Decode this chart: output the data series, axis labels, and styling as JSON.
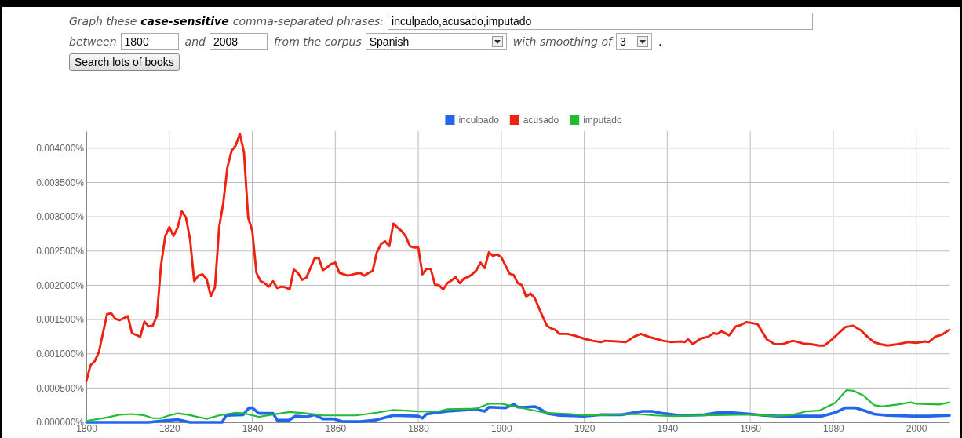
{
  "chart_data": {
    "type": "line",
    "annotations": [
      "Graph these",
      "case-sensitive",
      "comma-separated phrases:",
      "inculpado,acusado,imputado",
      "between",
      "1800",
      "and",
      "2008",
      "from the corpus",
      "Spanish",
      "with smoothing of",
      "3",
      ".",
      "Search lots of books"
    ],
    "xlim": [
      1800,
      2008
    ],
    "xticks": [
      1800,
      1820,
      1840,
      1860,
      1880,
      1900,
      1920,
      1940,
      1960,
      1980,
      2000
    ],
    "ylim": [
      0,
      0.00425
    ],
    "yticks": [
      {
        "value": 0,
        "label": "0.000000%"
      },
      {
        "value": 0.0005,
        "label": "0.000500%"
      },
      {
        "value": 0.001,
        "label": "0.001000%"
      },
      {
        "value": 0.0015,
        "label": "0.001500%"
      },
      {
        "value": 0.002,
        "label": "0.002000%"
      },
      {
        "value": 0.0025,
        "label": "0.002500%"
      },
      {
        "value": 0.003,
        "label": "0.003000%"
      },
      {
        "value": 0.0035,
        "label": "0.003500%"
      },
      {
        "value": 0.004,
        "label": "0.004000%"
      }
    ],
    "grid": true,
    "legend": "top",
    "marker": "none",
    "line_style": "solid",
    "series": [
      {
        "name": "inculpado",
        "color": "#2266ee",
        "x": [
          1800,
          1805,
          1810,
          1815,
          1818,
          1822,
          1825,
          1832.7,
          1833.7,
          1837.8,
          1839.2,
          1840,
          1841.6,
          1845,
          1846,
          1848.8,
          1850.4,
          1853,
          1855,
          1857,
          1859.6,
          1861.8,
          1866,
          1869.4,
          1874,
          1880,
          1881,
          1882,
          1887,
          1894,
          1896,
          1897,
          1901,
          1903,
          1904,
          1906,
          1908,
          1909,
          1911,
          1914,
          1920,
          1924,
          1929,
          1934,
          1936.4,
          1938.9,
          1943.3,
          1949,
          1952,
          1955.8,
          1960,
          1963.4,
          1966.5,
          1971.6,
          1977.2,
          1980.4,
          1982.9,
          1985.4,
          1988,
          1989.8,
          1993,
          1999.2,
          2003,
          2008
        ],
        "values": [
          0,
          0,
          0,
          0,
          2e-05,
          4e-05,
          0,
          0,
          0.0001,
          0.00011,
          0.00021,
          0.00021,
          0.00013,
          0.00013,
          3e-05,
          3e-05,
          9e-05,
          8e-05,
          0.00011,
          5e-05,
          5e-05,
          1e-05,
          1e-05,
          3e-05,
          0.0001,
          9e-05,
          6e-05,
          0.00012,
          0.00016,
          0.00019,
          0.00016,
          0.00022,
          0.00021,
          0.00026,
          0.00022,
          0.00022,
          0.00023,
          0.00021,
          0.00013,
          0.0001,
          9e-05,
          0.00011,
          0.00011,
          0.00016,
          0.00016,
          0.00013,
          0.0001,
          0.00011,
          0.00014,
          0.00014,
          0.00012,
          0.0001,
          9e-05,
          9e-05,
          9e-05,
          0.00014,
          0.00021,
          0.00021,
          0.00016,
          0.00012,
          0.0001,
          9e-05,
          9e-05,
          0.0001
        ]
      },
      {
        "name": "acusado",
        "color": "#ee2211",
        "x": [
          1800,
          1801,
          1802,
          1803,
          1805,
          1806,
          1807,
          1808,
          1810,
          1811,
          1813,
          1814,
          1815,
          1816,
          1817,
          1818,
          1819,
          1820,
          1821,
          1822,
          1823,
          1824,
          1825,
          1826,
          1827,
          1828,
          1829,
          1830,
          1831,
          1832,
          1833,
          1834,
          1835,
          1836,
          1837,
          1838,
          1839,
          1840,
          1841,
          1842,
          1843,
          1844,
          1845,
          1846,
          1847,
          1848,
          1849,
          1850,
          1851,
          1852,
          1853,
          1854,
          1855,
          1856,
          1857,
          1858,
          1859,
          1860,
          1861,
          1863,
          1865,
          1866,
          1867,
          1868,
          1869,
          1870,
          1871,
          1872,
          1873,
          1874,
          1875,
          1876,
          1877,
          1878,
          1879,
          1880,
          1881,
          1882,
          1883,
          1884,
          1885,
          1886,
          1887,
          1888,
          1889,
          1890,
          1891,
          1892,
          1893,
          1894,
          1895,
          1896,
          1897,
          1898,
          1899,
          1900,
          1901,
          1902,
          1903,
          1904,
          1905,
          1906,
          1907,
          1908,
          1909,
          1910,
          1911,
          1912,
          1913,
          1914,
          1916,
          1918,
          1920,
          1922,
          1924,
          1925,
          1928,
          1930,
          1932,
          1933.6,
          1936,
          1939,
          1941,
          1943.3,
          1944.2,
          1945,
          1946.1,
          1948,
          1949.9,
          1951.1,
          1952.1,
          1953,
          1954.9,
          1956.5,
          1957.7,
          1959,
          1960.3,
          1961.8,
          1964,
          1965.9,
          1967.8,
          1970.3,
          1972.8,
          1974.7,
          1976.6,
          1977.9,
          1979.7,
          1981.3,
          1982.9,
          1984.8,
          1986.7,
          1988.2,
          1989.8,
          1991.4,
          1993,
          1995.5,
          1998,
          2000,
          2002.1,
          2003,
          2004.6,
          2006.2,
          2008
        ],
        "values": [
          0.0006,
          0.00083,
          0.00089,
          0.00102,
          0.00158,
          0.00159,
          0.00151,
          0.00149,
          0.00155,
          0.0013,
          0.00125,
          0.00147,
          0.0014,
          0.00141,
          0.00155,
          0.00229,
          0.00271,
          0.00285,
          0.00272,
          0.00284,
          0.00308,
          0.00299,
          0.00267,
          0.00206,
          0.00214,
          0.00216,
          0.00209,
          0.00184,
          0.00197,
          0.00284,
          0.0032,
          0.00372,
          0.00396,
          0.00404,
          0.00421,
          0.00394,
          0.00299,
          0.00279,
          0.00218,
          0.00206,
          0.00203,
          0.00198,
          0.00206,
          0.00196,
          0.00198,
          0.00197,
          0.00194,
          0.00223,
          0.00218,
          0.00208,
          0.00211,
          0.00225,
          0.00239,
          0.0024,
          0.00222,
          0.00226,
          0.00231,
          0.00233,
          0.00218,
          0.00214,
          0.00217,
          0.00218,
          0.00214,
          0.00218,
          0.00221,
          0.00248,
          0.0026,
          0.00264,
          0.00257,
          0.0029,
          0.00284,
          0.00279,
          0.00271,
          0.00257,
          0.00255,
          0.00255,
          0.00216,
          0.00224,
          0.00224,
          0.00201,
          0.002,
          0.00194,
          0.00203,
          0.00207,
          0.00212,
          0.00203,
          0.0021,
          0.00212,
          0.00216,
          0.00222,
          0.00233,
          0.00225,
          0.00248,
          0.00243,
          0.00245,
          0.00241,
          0.00229,
          0.00217,
          0.00215,
          0.00203,
          0.002,
          0.00183,
          0.00188,
          0.00182,
          0.00168,
          0.00154,
          0.00141,
          0.00137,
          0.00135,
          0.00129,
          0.00129,
          0.00126,
          0.00122,
          0.00119,
          0.00117,
          0.00119,
          0.00118,
          0.00117,
          0.00125,
          0.00129,
          0.00124,
          0.00119,
          0.00117,
          0.00118,
          0.00117,
          0.00121,
          0.00114,
          0.00122,
          0.00125,
          0.0013,
          0.00129,
          0.00133,
          0.00127,
          0.0014,
          0.00142,
          0.00146,
          0.00145,
          0.00143,
          0.00121,
          0.00114,
          0.00114,
          0.00119,
          0.00115,
          0.00114,
          0.00112,
          0.00112,
          0.00121,
          0.0013,
          0.00139,
          0.00141,
          0.00134,
          0.00125,
          0.00117,
          0.00114,
          0.00112,
          0.00114,
          0.00117,
          0.00116,
          0.00118,
          0.00117,
          0.00125,
          0.00128,
          0.00135
        ]
      },
      {
        "name": "imputado",
        "color": "#22bb33",
        "x": [
          1800,
          1805,
          1808,
          1811,
          1814,
          1816,
          1818,
          1820,
          1822,
          1824.5,
          1829,
          1832,
          1836,
          1838,
          1841.6,
          1844.7,
          1849,
          1853,
          1857,
          1861,
          1865,
          1870,
          1874,
          1880,
          1885,
          1887,
          1894,
          1897,
          1900,
          1904,
          1910.4,
          1916.7,
          1920,
          1926,
          1933,
          1937,
          1941.4,
          1949,
          1957,
          1960,
          1966.5,
          1970.3,
          1973.5,
          1976.6,
          1980.4,
          1983.2,
          1984.8,
          1987.3,
          1989.8,
          1991.7,
          1995.5,
          1998.6,
          2000,
          2005.5,
          2008
        ],
        "values": [
          2e-05,
          7e-05,
          0.00011,
          0.00012,
          0.0001,
          6e-05,
          6e-05,
          0.0001,
          0.00013,
          0.00011,
          5e-05,
          0.0001,
          0.00014,
          0.00013,
          8e-05,
          0.00011,
          0.00015,
          0.00013,
          0.0001,
          0.0001,
          0.0001,
          0.00014,
          0.00018,
          0.00016,
          0.00016,
          0.00019,
          0.0002,
          0.00027,
          0.00027,
          0.00022,
          0.00014,
          0.00012,
          0.0001,
          0.00011,
          0.00012,
          0.0001,
          9e-05,
          0.0001,
          0.00011,
          0.00011,
          9e-05,
          0.00011,
          0.00016,
          0.00017,
          0.00028,
          0.00047,
          0.00046,
          0.00039,
          0.00025,
          0.00023,
          0.00026,
          0.00029,
          0.00027,
          0.00026,
          0.00029
        ]
      }
    ]
  }
}
